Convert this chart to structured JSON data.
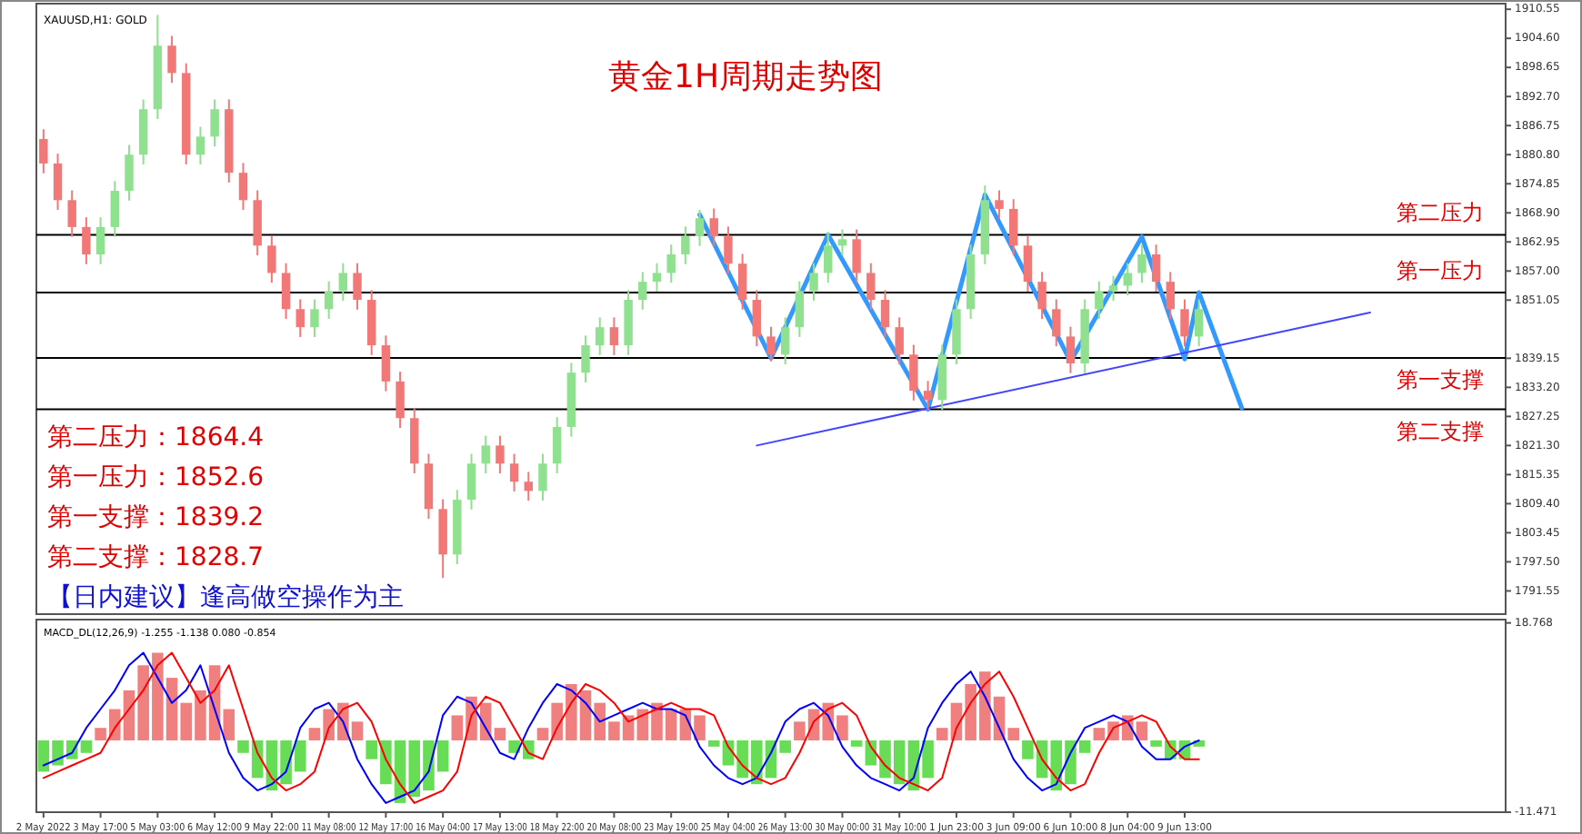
{
  "chart_data": [
    {
      "type": "candlestick",
      "title": "黄金1H周期走势图",
      "subtitle": "XAUUSD,H1: GOLD",
      "categories": [
        null,
        null,
        null,
        null,
        null,
        null,
        null,
        null,
        null,
        null,
        null,
        null,
        null,
        null,
        null,
        null,
        null,
        null,
        null,
        null,
        null,
        null,
        null,
        null,
        null,
        null,
        null,
        null,
        null,
        null,
        null,
        null,
        null,
        null,
        null,
        null,
        null,
        null,
        null,
        null,
        null,
        null,
        null,
        null,
        null,
        null,
        null,
        null,
        null,
        null,
        null,
        null,
        null,
        null,
        null,
        null,
        null,
        null,
        null,
        null,
        null,
        null,
        null,
        null,
        null,
        null,
        null,
        null,
        null,
        null,
        null,
        null,
        null,
        null,
        null,
        null,
        null,
        null,
        null,
        null,
        null,
        null,
        null,
        null,
        null,
        null,
        null,
        null,
        null,
        null,
        null,
        null,
        null,
        null,
        null,
        null,
        null,
        null,
        null,
        null,
        null,
        null,
        null
      ],
      "ohlc": [
        [
          1884.0,
          1886.0,
          1877.0,
          1879.0
        ],
        [
          1879.0,
          1881.0,
          1869.5,
          1871.5
        ],
        [
          1871.5,
          1873.5,
          1864.0,
          1866.0
        ],
        [
          1866.0,
          1868.0,
          1858.4,
          1860.4
        ],
        [
          1860.4,
          1868.0,
          1858.4,
          1866.0
        ],
        [
          1866.0,
          1875.4,
          1864.0,
          1873.4
        ],
        [
          1873.4,
          1882.8,
          1871.4,
          1880.8
        ],
        [
          1880.8,
          1892.1,
          1878.8,
          1890.1
        ],
        [
          1890.1,
          1909.4,
          1888.1,
          1903.1
        ],
        [
          1903.1,
          1905.1,
          1895.5,
          1897.5
        ],
        [
          1897.5,
          1899.5,
          1878.8,
          1880.8
        ],
        [
          1880.8,
          1886.5,
          1878.8,
          1884.5
        ],
        [
          1884.5,
          1892.1,
          1882.5,
          1890.1
        ],
        [
          1890.1,
          1892.1,
          1875.1,
          1877.1
        ],
        [
          1877.1,
          1879.1,
          1869.5,
          1871.5
        ],
        [
          1871.5,
          1873.5,
          1860.2,
          1862.2
        ],
        [
          1862.2,
          1864.2,
          1854.6,
          1856.6
        ],
        [
          1856.6,
          1858.6,
          1847.2,
          1849.2
        ],
        [
          1849.2,
          1851.2,
          1843.5,
          1845.5
        ],
        [
          1845.5,
          1851.2,
          1843.5,
          1849.2
        ],
        [
          1849.2,
          1854.9,
          1847.2,
          1852.9
        ],
        [
          1852.9,
          1858.6,
          1850.9,
          1856.6
        ],
        [
          1856.6,
          1858.6,
          1849.1,
          1851.1
        ],
        [
          1851.1,
          1853.1,
          1839.8,
          1841.8
        ],
        [
          1841.8,
          1843.8,
          1832.4,
          1834.4
        ],
        [
          1834.4,
          1836.4,
          1824.9,
          1826.9
        ],
        [
          1826.9,
          1828.9,
          1815.6,
          1817.6
        ],
        [
          1817.6,
          1819.6,
          1806.3,
          1808.3
        ],
        [
          1808.3,
          1810.3,
          1794.2,
          1799.0
        ],
        [
          1799.0,
          1812.2,
          1797.0,
          1810.2
        ],
        [
          1810.2,
          1819.6,
          1808.2,
          1817.6
        ],
        [
          1817.6,
          1823.3,
          1815.6,
          1821.3
        ],
        [
          1821.3,
          1823.3,
          1815.6,
          1817.6
        ],
        [
          1817.6,
          1819.6,
          1811.9,
          1813.9
        ],
        [
          1813.9,
          1815.9,
          1810.0,
          1812.0
        ],
        [
          1812.0,
          1819.6,
          1810.0,
          1817.6
        ],
        [
          1817.6,
          1827.1,
          1815.6,
          1825.1
        ],
        [
          1825.1,
          1838.2,
          1823.1,
          1836.2
        ],
        [
          1836.2,
          1843.8,
          1834.2,
          1841.8
        ],
        [
          1841.8,
          1847.5,
          1839.8,
          1845.5
        ],
        [
          1845.5,
          1847.5,
          1839.8,
          1841.8
        ],
        [
          1841.8,
          1853.1,
          1839.8,
          1851.1
        ],
        [
          1851.1,
          1856.8,
          1849.1,
          1854.8
        ],
        [
          1854.8,
          1858.6,
          1852.8,
          1856.6
        ],
        [
          1856.6,
          1862.4,
          1854.6,
          1860.4
        ],
        [
          1860.4,
          1866.1,
          1858.4,
          1864.1
        ],
        [
          1864.1,
          1869.5,
          1862.1,
          1867.8
        ],
        [
          1867.8,
          1869.8,
          1862.1,
          1864.1
        ],
        [
          1864.1,
          1866.1,
          1856.5,
          1858.5
        ],
        [
          1858.5,
          1860.5,
          1849.1,
          1851.1
        ],
        [
          1851.1,
          1853.1,
          1841.6,
          1843.6
        ],
        [
          1843.6,
          1845.6,
          1838.5,
          1839.9
        ],
        [
          1839.9,
          1847.5,
          1837.9,
          1845.5
        ],
        [
          1845.5,
          1854.9,
          1843.5,
          1852.9
        ],
        [
          1852.9,
          1858.6,
          1850.9,
          1856.6
        ],
        [
          1856.6,
          1865.0,
          1854.6,
          1862.2
        ],
        [
          1862.2,
          1865.5,
          1860.2,
          1863.5
        ],
        [
          1863.5,
          1865.5,
          1854.6,
          1856.6
        ],
        [
          1856.6,
          1858.6,
          1849.1,
          1851.1
        ],
        [
          1851.1,
          1853.1,
          1843.5,
          1845.5
        ],
        [
          1845.5,
          1847.5,
          1837.9,
          1839.9
        ],
        [
          1839.9,
          1841.9,
          1830.5,
          1832.5
        ],
        [
          1832.5,
          1834.5,
          1828.6,
          1830.6
        ],
        [
          1830.6,
          1841.9,
          1828.6,
          1839.9
        ],
        [
          1839.9,
          1851.2,
          1837.9,
          1849.2
        ],
        [
          1849.2,
          1862.4,
          1847.2,
          1860.4
        ],
        [
          1860.4,
          1874.5,
          1858.4,
          1871.5
        ],
        [
          1871.5,
          1873.5,
          1867.7,
          1869.7
        ],
        [
          1869.7,
          1871.7,
          1860.2,
          1862.2
        ],
        [
          1862.2,
          1864.2,
          1852.8,
          1854.8
        ],
        [
          1854.8,
          1856.8,
          1847.2,
          1849.2
        ],
        [
          1849.2,
          1851.2,
          1841.6,
          1843.6
        ],
        [
          1843.6,
          1845.6,
          1836.1,
          1838.1
        ],
        [
          1838.1,
          1851.2,
          1836.1,
          1849.2
        ],
        [
          1849.2,
          1854.9,
          1847.2,
          1852.9
        ],
        [
          1852.9,
          1856.0,
          1850.9,
          1854.0
        ],
        [
          1854.0,
          1858.6,
          1852.0,
          1856.6
        ],
        [
          1856.6,
          1862.4,
          1854.6,
          1860.4
        ],
        [
          1860.4,
          1862.4,
          1852.8,
          1854.8
        ],
        [
          1854.8,
          1856.8,
          1847.2,
          1849.2
        ],
        [
          1849.2,
          1851.2,
          1841.6,
          1843.6
        ],
        [
          1843.6,
          1851.2,
          1841.6,
          1849.2
        ],
        null,
        null,
        null,
        null,
        null,
        null,
        null,
        null,
        null,
        null,
        null,
        null,
        null,
        null,
        null,
        null,
        null,
        null,
        null,
        null,
        null
      ],
      "colors": [
        "#f27878",
        "#f27878",
        "#f27878",
        "#f27878",
        "#8fe08f",
        "#8fe08f",
        "#8fe08f",
        "#8fe08f",
        "#8fe08f",
        "#f27878",
        "#f27878",
        "#8fe08f",
        "#8fe08f",
        "#f27878",
        "#f27878",
        "#f27878",
        "#f27878",
        "#f27878",
        "#f27878",
        "#8fe08f",
        "#8fe08f",
        "#8fe08f",
        "#f27878",
        "#f27878",
        "#f27878",
        "#f27878",
        "#f27878",
        "#f27878",
        "#f27878",
        "#8fe08f",
        "#8fe08f",
        "#8fe08f",
        "#f27878",
        "#f27878",
        "#f27878",
        "#8fe08f",
        "#8fe08f",
        "#8fe08f",
        "#8fe08f",
        "#8fe08f",
        "#f27878",
        "#8fe08f",
        "#8fe08f",
        "#8fe08f",
        "#8fe08f",
        "#8fe08f",
        "#8fe08f",
        "#f27878",
        "#f27878",
        "#f27878",
        "#f27878",
        "#f27878",
        "#8fe08f",
        "#8fe08f",
        "#8fe08f",
        "#8fe08f",
        "#8fe08f",
        "#f27878",
        "#f27878",
        "#f27878",
        "#f27878",
        "#f27878",
        "#f27878",
        "#8fe08f",
        "#8fe08f",
        "#8fe08f",
        "#8fe08f",
        "#f27878",
        "#f27878",
        "#f27878",
        "#f27878",
        "#f27878",
        "#f27878",
        "#8fe08f",
        "#8fe08f",
        "#8fe08f",
        "#8fe08f",
        "#8fe08f",
        "#f27878",
        "#f27878",
        "#f27878",
        "#8fe08f",
        null,
        null,
        null,
        null,
        null,
        null,
        null,
        null,
        null,
        null,
        null,
        null,
        null,
        null,
        null,
        null,
        null,
        null,
        null,
        null,
        null
      ],
      "ylim": [
        1786.8,
        1911.7
      ],
      "yticks": [
        1910.55,
        {
          "value": 1904.6,
          "label": "1904.60"
        },
        {
          "value": 1898.65,
          "label": "1898.65"
        },
        {
          "value": 1892.7,
          "label": "1892.70"
        },
        {
          "value": 1886.75,
          "label": "1886.75"
        },
        {
          "value": 1880.8,
          "label": "1880.80"
        },
        {
          "value": 1874.85,
          "label": "1874.85"
        },
        {
          "value": 1868.9,
          "label": "1868.90"
        },
        {
          "value": 1862.95,
          "label": "1862.95"
        },
        {
          "value": 1857,
          "label": "1857.00"
        },
        {
          "value": 1851.05,
          "label": "1851.05"
        },
        {
          "value": 1839.15,
          "label": "1839.15"
        },
        {
          "value": 1833.2,
          "label": "1833.20"
        },
        {
          "value": 1827.25,
          "label": "1827.25"
        },
        {
          "value": 1821.3,
          "label": "1821.30"
        },
        {
          "value": 1815.35,
          "label": "1815.35"
        },
        {
          "value": 1809.4,
          "label": "1809.40"
        },
        {
          "value": 1803.45,
          "label": "1803.45"
        },
        {
          "value": 1797.5,
          "label": "1797.50"
        },
        {
          "value": 1791.55,
          "label": "1791.55"
        }
      ],
      "tick_labels": "y",
      "ref_lines": [
        {
          "axis": "y",
          "value": 1864.4,
          "label": "第二压力",
          "color": "#000000"
        },
        {
          "axis": "y",
          "value": 1852.6,
          "label": "第一压力",
          "color": "#000000"
        },
        {
          "axis": "y",
          "value": 1839.2,
          "label": "第一支撑",
          "color": "#000000"
        },
        {
          "axis": "y",
          "value": 1828.7,
          "label": "第二支撑",
          "color": "#000000"
        }
      ],
      "annotations": [
        "第二压力：1864.4",
        "第一压力：1852.6",
        "第一支撑：1839.2",
        "第二支撑：1828.7",
        "【日内建议】逢高做空操作为主"
      ],
      "series": [
        {
          "type": "line",
          "color": "#3399ff",
          "values": [
            null,
            null,
            null,
            null,
            null,
            null,
            null,
            null,
            null,
            null,
            null,
            null,
            null,
            null,
            null,
            null,
            null,
            null,
            null,
            null,
            null,
            null,
            null,
            null,
            null,
            null,
            null,
            null,
            null,
            null,
            null,
            null,
            null,
            null,
            null,
            null,
            null,
            null,
            null,
            null,
            null,
            null,
            null,
            null,
            null,
            null,
            1868.5,
            null,
            null,
            null,
            null,
            1839.2,
            null,
            null,
            null,
            1864.4,
            null,
            null,
            null,
            null,
            null,
            null,
            1828.7,
            null,
            null,
            null,
            1872.6,
            null,
            null,
            null,
            null,
            null,
            1838.5,
            null,
            null,
            null,
            null,
            1864.0,
            null,
            null,
            1839.0,
            1852.6,
            null,
            null,
            1829.0,
            null,
            null,
            null,
            null,
            null,
            null,
            null,
            null,
            null,
            null,
            null,
            null,
            null,
            null,
            null,
            null,
            null,
            null
          ]
        },
        {
          "type": "line",
          "color": "#4444ff",
          "values": [
            null,
            null,
            null,
            null,
            null,
            null,
            null,
            null,
            null,
            null,
            null,
            null,
            null,
            null,
            null,
            null,
            null,
            null,
            null,
            null,
            null,
            null,
            null,
            null,
            null,
            null,
            null,
            null,
            null,
            null,
            null,
            null,
            null,
            null,
            null,
            null,
            null,
            null,
            null,
            null,
            null,
            null,
            null,
            null,
            null,
            null,
            null,
            null,
            null,
            null,
            1821.3,
            null,
            null,
            null,
            null,
            null,
            null,
            null,
            null,
            null,
            null,
            null,
            null,
            null,
            null,
            null,
            null,
            null,
            null,
            null,
            null,
            null,
            null,
            null,
            null,
            null,
            null,
            null,
            null,
            null,
            null,
            null,
            null,
            null,
            null,
            null,
            null,
            null,
            null,
            null,
            null,
            null,
            null,
            1848.5,
            null,
            null,
            null,
            null,
            null,
            null,
            null,
            null,
            null
          ]
        }
      ]
    },
    {
      "type": "bar",
      "title": "MACD_DL(12,26,9) -1.255 -1.138 0.080 -0.854",
      "categories": [
        "2 May 2022",
        null,
        null,
        null,
        "3 May 17:00",
        null,
        null,
        null,
        "5 May 03:00",
        null,
        null,
        null,
        "6 May 12:00",
        null,
        null,
        null,
        "9 May 22:00",
        null,
        null,
        null,
        "11 May 08:00",
        null,
        null,
        null,
        "12 May 17:00",
        null,
        null,
        null,
        "16 May 04:00",
        null,
        null,
        null,
        "17 May 13:00",
        null,
        null,
        null,
        "18 May 22:00",
        null,
        null,
        null,
        "20 May 08:00",
        null,
        null,
        null,
        "23 May 19:00",
        null,
        null,
        null,
        "25 May 04:00",
        null,
        null,
        null,
        "26 May 13:00",
        null,
        null,
        null,
        "30 May 00:00",
        null,
        null,
        null,
        "31 May 10:00",
        null,
        null,
        null,
        "1 Jun 23:00",
        null,
        null,
        null,
        "3 Jun 09:00",
        null,
        null,
        null,
        "6 Jun 10:00",
        null,
        null,
        null,
        "8 Jun 04:00",
        null,
        null,
        null,
        "9 Jun 13:00",
        null,
        null,
        null,
        null,
        null,
        null,
        null,
        null,
        null,
        null,
        null,
        null,
        null,
        null,
        null,
        null,
        null,
        null,
        null,
        null,
        null,
        null
      ],
      "ylim": [
        -11.471,
        19.3
      ],
      "yticks": [
        18.768,
        -11.471
      ],
      "series": [
        {
          "type": "bar",
          "colors": [
            "#66dd55",
            "#66dd55",
            "#66dd55",
            "#66dd55",
            "#f08080",
            "#f08080",
            "#f08080",
            "#f08080",
            "#f08080",
            "#f08080",
            "#f08080",
            "#f08080",
            "#f08080",
            "#f08080",
            "#66dd55",
            "#66dd55",
            "#66dd55",
            "#66dd55",
            "#66dd55",
            "#f08080",
            "#f08080",
            "#f08080",
            "#f08080",
            "#66dd55",
            "#66dd55",
            "#66dd55",
            "#66dd55",
            "#66dd55",
            "#66dd55",
            "#f08080",
            "#f08080",
            "#f08080",
            "#f08080",
            "#66dd55",
            "#66dd55",
            "#f08080",
            "#f08080",
            "#f08080",
            "#f08080",
            "#f08080",
            "#f08080",
            "#f08080",
            "#f08080",
            "#f08080",
            "#f08080",
            "#f08080",
            "#f08080",
            "#66dd55",
            "#66dd55",
            "#66dd55",
            "#66dd55",
            "#66dd55",
            "#66dd55",
            "#f08080",
            "#f08080",
            "#f08080",
            "#f08080",
            "#66dd55",
            "#66dd55",
            "#66dd55",
            "#66dd55",
            "#66dd55",
            "#66dd55",
            "#f08080",
            "#f08080",
            "#f08080",
            "#f08080",
            "#f08080",
            "#f08080",
            "#66dd55",
            "#66dd55",
            "#66dd55",
            "#66dd55",
            "#66dd55",
            "#f08080",
            "#f08080",
            "#f08080",
            "#f08080",
            "#66dd55",
            "#66dd55",
            "#66dd55",
            "#66dd55",
            null,
            null,
            null,
            null,
            null,
            null,
            null,
            null,
            null,
            null,
            null,
            null,
            null,
            null,
            null,
            null,
            null,
            null,
            null,
            null,
            null
          ],
          "values": [
            -5,
            -4,
            -3,
            -2,
            2,
            5,
            8,
            12,
            14,
            10,
            6,
            8,
            12,
            5,
            -2,
            -6,
            -8,
            -7,
            -5,
            2,
            5,
            6,
            3,
            -3,
            -7,
            -10,
            -9,
            -8,
            -5,
            4,
            7,
            6,
            2,
            -2,
            -3,
            2,
            6,
            9,
            8,
            6,
            3,
            4,
            5,
            6,
            5,
            5,
            4,
            -1,
            -4,
            -6,
            -7,
            -6,
            -2,
            3,
            5,
            6,
            4,
            -1,
            -4,
            -6,
            -7,
            -8,
            -6,
            2,
            6,
            9,
            11,
            7,
            2,
            -3,
            -6,
            -8,
            -7,
            -2,
            2,
            3,
            4,
            3,
            -1,
            -3,
            -3,
            -1,
            null,
            null,
            null,
            null,
            null,
            null,
            null,
            null,
            null,
            null,
            null,
            null,
            null,
            null,
            null,
            null,
            null,
            null,
            null,
            null,
            null
          ]
        },
        {
          "type": "line",
          "color": "#0000ff",
          "values": [
            -4,
            -3,
            -2,
            2,
            5,
            8,
            12,
            14,
            10,
            6,
            8,
            12,
            5,
            -2,
            -6,
            -8,
            -7,
            -5,
            2,
            5,
            6,
            3,
            -3,
            -7,
            -10,
            -9,
            -8,
            -5,
            4,
            7,
            6,
            2,
            -2,
            -3,
            2,
            6,
            9,
            8,
            6,
            3,
            4,
            5,
            6,
            5,
            5,
            4,
            -1,
            -4,
            -6,
            -7,
            -6,
            -2,
            3,
            5,
            6,
            4,
            -1,
            -4,
            -6,
            -7,
            -8,
            -6,
            2,
            6,
            9,
            11,
            7,
            2,
            -3,
            -6,
            -8,
            -7,
            -2,
            2,
            3,
            4,
            3,
            -1,
            -3,
            -3,
            -1,
            0,
            null,
            null,
            null,
            null,
            null,
            null,
            null,
            null,
            null,
            null,
            null,
            null,
            null,
            null,
            null,
            null,
            null,
            null,
            null,
            null,
            null
          ]
        },
        {
          "type": "line",
          "color": "#ff0000",
          "values": [
            -6,
            -5,
            -4,
            -3,
            -2,
            2,
            5,
            8,
            12,
            14,
            10,
            6,
            8,
            12,
            5,
            -2,
            -6,
            -8,
            -7,
            -5,
            2,
            5,
            6,
            3,
            -3,
            -7,
            -10,
            -9,
            -8,
            -5,
            4,
            7,
            6,
            2,
            -2,
            -3,
            2,
            6,
            9,
            8,
            6,
            3,
            4,
            5,
            6,
            5,
            5,
            4,
            -1,
            -4,
            -6,
            -7,
            -6,
            -2,
            3,
            5,
            6,
            4,
            -1,
            -4,
            -6,
            -7,
            -8,
            -6,
            2,
            6,
            9,
            11,
            7,
            2,
            -3,
            -6,
            -8,
            -7,
            -2,
            2,
            3,
            4,
            3,
            -1,
            -3,
            -3,
            null,
            null,
            null,
            null,
            null,
            null,
            null,
            null,
            null,
            null,
            null,
            null,
            null,
            null,
            null,
            null,
            null,
            null,
            null,
            null,
            null
          ]
        }
      ]
    }
  ]
}
